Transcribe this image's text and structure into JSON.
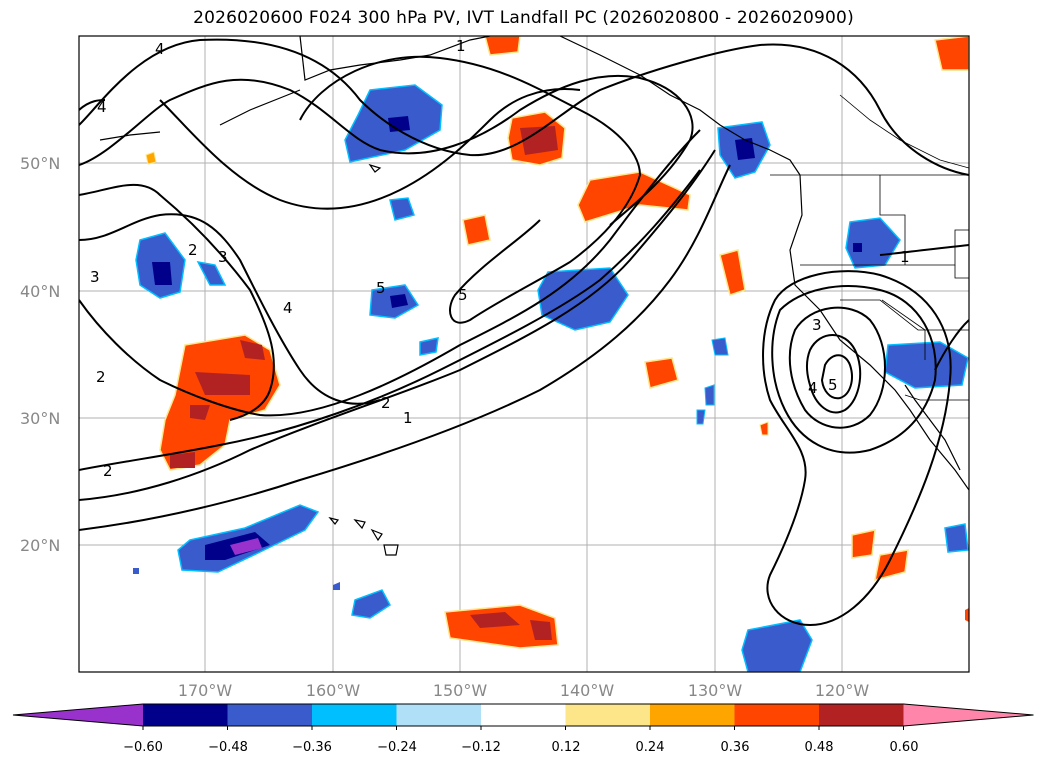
{
  "title": "2026020600 F024 300 hPa PV, IVT Landfall PC (2026020800 - 2026020900)",
  "map": {
    "latitude_labels": [
      "50°N",
      "40°N",
      "30°N",
      "20°N"
    ],
    "longitude_labels": [
      "170°W",
      "160°W",
      "150°W",
      "140°W",
      "130°W",
      "120°W"
    ],
    "contour_labels": [
      "4",
      "1",
      "4",
      "3",
      "2",
      "3",
      "4",
      "5",
      "5",
      "2",
      "2",
      "1",
      "2",
      "3",
      "5",
      "4",
      "1"
    ]
  },
  "colorbar": {
    "tick_labels": [
      "−0.60",
      "−0.48",
      "−0.36",
      "−0.24",
      "−0.12",
      "0.12",
      "0.24",
      "0.36",
      "0.48",
      "0.60"
    ],
    "colors": [
      "#9932cc",
      "#00008b",
      "#3a5bcc",
      "#00bfff",
      "#b0e0f8",
      "#ffffff",
      "#fde68a",
      "#ffa500",
      "#ff4500",
      "#b22222",
      "#ff85aa"
    ]
  }
}
